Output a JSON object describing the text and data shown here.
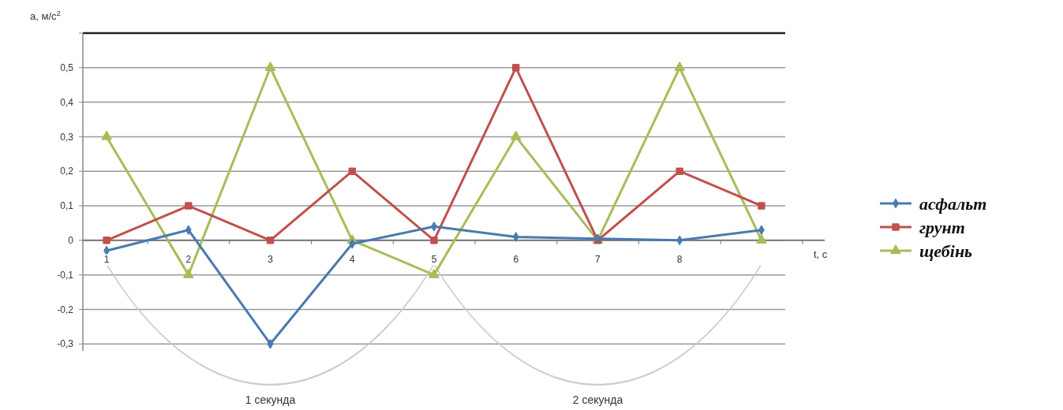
{
  "chart_data": {
    "type": "line",
    "ylabel": "a, м/с$^{2}$",
    "xlabel": "t, с",
    "categories": [
      "1",
      "2",
      "3",
      "4",
      "5",
      "6",
      "7",
      "8",
      null
    ],
    "series": [
      {
        "name": "асфальт",
        "color": "#4a7ab0",
        "marker": "diamond",
        "values": [
          -0.03,
          0.03,
          -0.3,
          -0.01,
          0.04,
          0.01,
          0.005,
          0,
          0.03
        ]
      },
      {
        "name": "грунт",
        "color": "#c0504d",
        "marker": "square",
        "values": [
          0,
          0.1,
          0,
          0.2,
          0,
          0.5,
          0,
          0.2,
          0.1
        ]
      },
      {
        "name": "щебінь",
        "color": "#a8bd58",
        "marker": "triangle",
        "values": [
          0.3,
          -0.1,
          0.5,
          0,
          -0.1,
          0.3,
          0,
          0.5,
          0
        ]
      }
    ],
    "ylim": [
      -0.32,
      0.6
    ],
    "yticks": [
      {
        "value": -0.3,
        "label": "-0,3"
      },
      {
        "value": -0.2,
        "label": "-0,2"
      },
      {
        "value": -0.1,
        "label": "-0,1"
      },
      {
        "value": 0,
        "label": "0"
      },
      {
        "value": 0.1,
        "label": "0,1"
      },
      {
        "value": 0.2,
        "label": "0,2"
      },
      {
        "value": 0.3,
        "label": "0,3"
      },
      {
        "value": 0.4,
        "label": "0,4"
      },
      {
        "value": 0.5,
        "label": "0,5"
      },
      {
        "value": 0.6,
        "label": null
      }
    ],
    "grid": "y",
    "legend": "right",
    "line_style": "solid",
    "annotations": [
      "1 секунда",
      "2 секунда"
    ]
  }
}
